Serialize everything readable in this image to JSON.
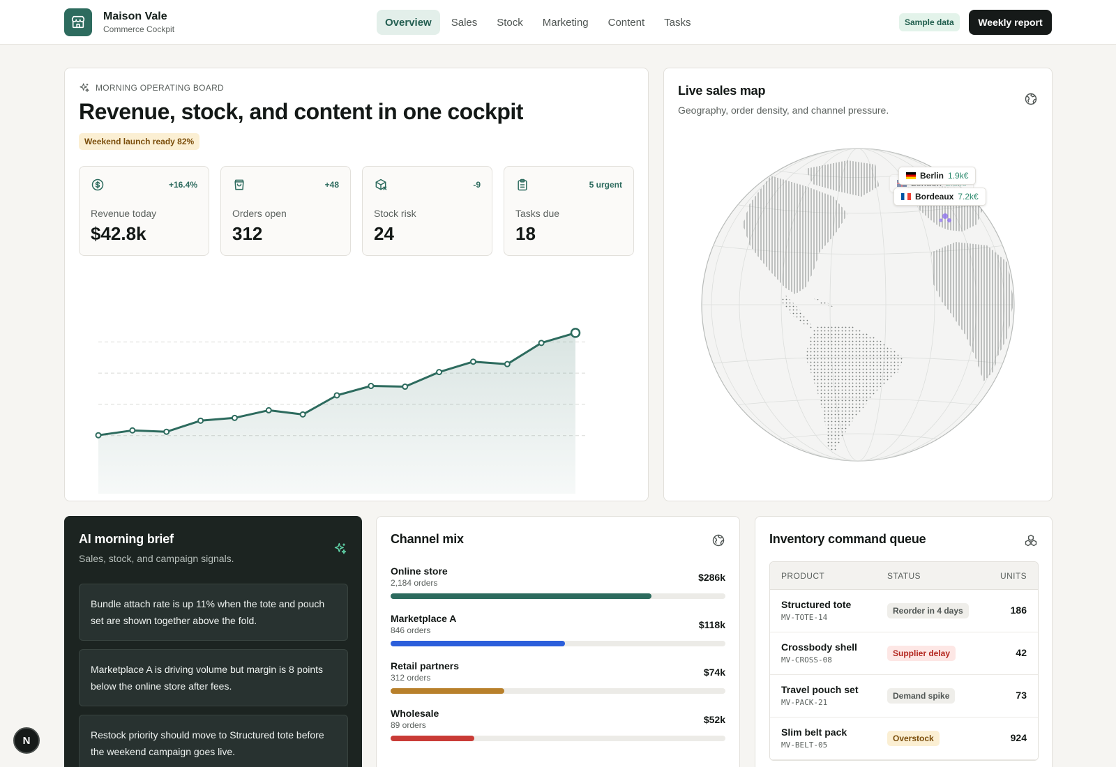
{
  "header": {
    "brand_name": "Maison Vale",
    "brand_sub": "Commerce Cockpit",
    "nav": [
      {
        "label": "Overview",
        "active": true
      },
      {
        "label": "Sales",
        "active": false
      },
      {
        "label": "Stock",
        "active": false
      },
      {
        "label": "Marketing",
        "active": false
      },
      {
        "label": "Content",
        "active": false
      },
      {
        "label": "Tasks",
        "active": false
      }
    ],
    "sample_badge": "Sample data",
    "report_button": "Weekly report"
  },
  "hero": {
    "eyebrow": "MORNING OPERATING BOARD",
    "title": "Revenue, stock, and content in one cockpit",
    "launch_badge": "Weekend launch ready 82%",
    "kpis": [
      {
        "icon": "dollar-icon",
        "delta": "+16.4%",
        "label": "Revenue today",
        "value": "$42.8k"
      },
      {
        "icon": "shopping-bag-icon",
        "delta": "+48",
        "label": "Orders open",
        "value": "312"
      },
      {
        "icon": "package-x-icon",
        "delta": "-9",
        "label": "Stock risk",
        "value": "24"
      },
      {
        "icon": "clipboard-icon",
        "delta": "5 urgent",
        "label": "Tasks due",
        "value": "18"
      }
    ]
  },
  "chart_data": {
    "type": "area",
    "x": [
      1,
      2,
      3,
      4,
      5,
      6,
      7,
      8,
      9,
      10,
      11,
      12,
      13,
      14,
      15
    ],
    "values": [
      10,
      11.4,
      11,
      14.2,
      15,
      17.2,
      16,
      21.5,
      24.2,
      24,
      28.2,
      31.2,
      30.5,
      36.6,
      39.5
    ],
    "ylim": [
      0,
      45
    ],
    "grid": true,
    "line_color": "#2d6b5e"
  },
  "map": {
    "title": "Live sales map",
    "subtitle": "Geography, order density, and channel pressure.",
    "cities": [
      {
        "name": "Berlin",
        "amount": "1.9k€",
        "flag": "de"
      },
      {
        "name": "London",
        "amount": "2.8k€",
        "flag": "gb"
      },
      {
        "name": "Bordeaux",
        "amount": "7.2k€",
        "flag": "fr"
      }
    ]
  },
  "brief": {
    "title": "AI morning brief",
    "subtitle": "Sales, stock, and campaign signals.",
    "items": [
      "Bundle attach rate is up 11% when the tote and pouch set are shown together above the fold.",
      "Marketplace A is driving volume but margin is 8 points below the online store after fees.",
      "Restock priority should move to Structured tote before the weekend campaign goes live."
    ]
  },
  "channels": {
    "title": "Channel mix",
    "items": [
      {
        "name": "Online store",
        "orders": "2,184 orders",
        "value": "$286k",
        "share": 0.78,
        "color": "#2d6b5e"
      },
      {
        "name": "Marketplace A",
        "orders": "846 orders",
        "value": "$118k",
        "share": 0.52,
        "color": "#2c5fdb"
      },
      {
        "name": "Retail partners",
        "orders": "312 orders",
        "value": "$74k",
        "share": 0.34,
        "color": "#b8802b"
      },
      {
        "name": "Wholesale",
        "orders": "89 orders",
        "value": "$52k",
        "share": 0.25,
        "color": "#c93b36"
      }
    ]
  },
  "inventory": {
    "title": "Inventory command queue",
    "headers": {
      "product": "PRODUCT",
      "status": "STATUS",
      "units": "UNITS"
    },
    "rows": [
      {
        "name": "Structured tote",
        "sku": "MV-TOTE-14",
        "status": "Reorder in 4 days",
        "tone": "neutral",
        "units": "186"
      },
      {
        "name": "Crossbody shell",
        "sku": "MV-CROSS-08",
        "status": "Supplier delay",
        "tone": "danger",
        "units": "42"
      },
      {
        "name": "Travel pouch set",
        "sku": "MV-PACK-21",
        "status": "Demand spike",
        "tone": "neutral",
        "units": "73"
      },
      {
        "name": "Slim belt pack",
        "sku": "MV-BELT-05",
        "status": "Overstock",
        "tone": "warn",
        "units": "924"
      }
    ]
  },
  "corner_button": "N"
}
